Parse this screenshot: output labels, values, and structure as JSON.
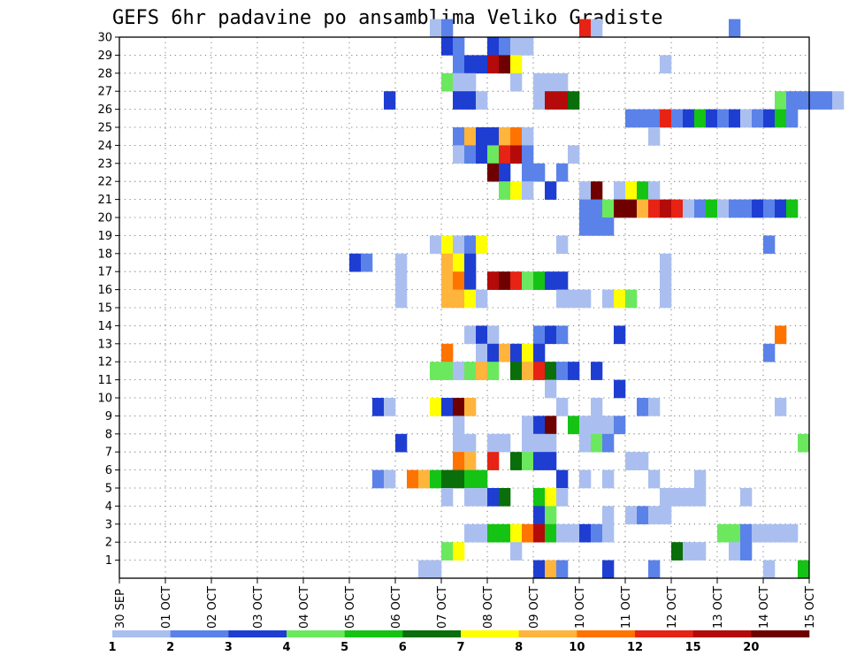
{
  "chart_data": {
    "type": "heatmap",
    "title": "GEFS 6hr padavine po ansamblima Veliko Gradiste",
    "x_ticks": [
      "30 SEP",
      "01 OCT",
      "02 OCT",
      "03 OCT",
      "04 OCT",
      "05 OCT",
      "06 OCT",
      "07 OCT",
      "08 OCT",
      "09 OCT",
      "10 OCT",
      "11 OCT",
      "12 OCT",
      "13 OCT",
      "14 OCT",
      "15 OCT"
    ],
    "x_unit": "6-hour step (4 per day) from 30 SEP",
    "y_ticks": [
      "1",
      "2",
      "3",
      "4",
      "5",
      "6",
      "7",
      "8",
      "9",
      "10",
      "11",
      "12",
      "13",
      "14",
      "15",
      "16",
      "17",
      "18",
      "19",
      "20",
      "21",
      "22",
      "23",
      "24",
      "25",
      "26",
      "27",
      "28",
      "29",
      "30"
    ],
    "ylim": [
      0,
      30
    ],
    "grid": true,
    "colorbar": {
      "labels": [
        "1",
        "2",
        "3",
        "4",
        "5",
        "6",
        "7",
        "8",
        "10",
        "12",
        "15",
        "20"
      ],
      "colors": [
        "#aabfef",
        "#5a82e8",
        "#1e3ed2",
        "#6be85e",
        "#14c314",
        "#0a6e0a",
        "#ffff00",
        "#ffb43c",
        "#ff7300",
        "#e62314",
        "#b40a0a",
        "#6e0000"
      ]
    },
    "cells": [
      [
        27,
        30,
        0
      ],
      [
        28,
        30,
        1
      ],
      [
        40,
        30,
        9
      ],
      [
        41,
        30,
        0
      ],
      [
        53,
        30,
        1
      ],
      [
        28,
        29,
        2
      ],
      [
        29,
        29,
        1
      ],
      [
        32,
        29,
        2
      ],
      [
        33,
        29,
        1
      ],
      [
        34,
        29,
        0
      ],
      [
        35,
        29,
        0
      ],
      [
        29,
        28,
        1
      ],
      [
        30,
        28,
        2
      ],
      [
        31,
        28,
        2
      ],
      [
        32,
        28,
        10
      ],
      [
        33,
        28,
        11
      ],
      [
        34,
        28,
        6
      ],
      [
        47,
        28,
        0
      ],
      [
        28,
        27,
        3
      ],
      [
        29,
        27,
        0
      ],
      [
        30,
        27,
        0
      ],
      [
        34,
        27,
        0
      ],
      [
        36,
        27,
        0
      ],
      [
        37,
        27,
        0
      ],
      [
        38,
        27,
        0
      ],
      [
        23,
        26,
        2
      ],
      [
        29,
        26,
        2
      ],
      [
        30,
        26,
        2
      ],
      [
        31,
        26,
        0
      ],
      [
        36,
        26,
        0
      ],
      [
        37,
        26,
        10
      ],
      [
        38,
        26,
        10
      ],
      [
        39,
        26,
        5
      ],
      [
        57,
        26,
        3
      ],
      [
        58,
        26,
        1
      ],
      [
        59,
        26,
        1
      ],
      [
        60,
        26,
        1
      ],
      [
        61,
        26,
        1
      ],
      [
        62,
        26,
        0
      ],
      [
        44,
        25,
        1
      ],
      [
        45,
        25,
        1
      ],
      [
        46,
        25,
        1
      ],
      [
        47,
        25,
        9
      ],
      [
        48,
        25,
        1
      ],
      [
        49,
        25,
        2
      ],
      [
        50,
        25,
        4
      ],
      [
        51,
        25,
        2
      ],
      [
        52,
        25,
        1
      ],
      [
        53,
        25,
        2
      ],
      [
        54,
        25,
        0
      ],
      [
        55,
        25,
        1
      ],
      [
        56,
        25,
        2
      ],
      [
        57,
        25,
        4
      ],
      [
        58,
        25,
        1
      ],
      [
        29,
        24,
        1
      ],
      [
        30,
        24,
        7
      ],
      [
        31,
        24,
        2
      ],
      [
        32,
        24,
        2
      ],
      [
        33,
        24,
        7
      ],
      [
        34,
        24,
        8
      ],
      [
        35,
        24,
        0
      ],
      [
        46,
        24,
        0
      ],
      [
        29,
        23,
        0
      ],
      [
        30,
        23,
        1
      ],
      [
        31,
        23,
        2
      ],
      [
        32,
        23,
        3
      ],
      [
        33,
        23,
        9
      ],
      [
        34,
        23,
        10
      ],
      [
        35,
        23,
        1
      ],
      [
        39,
        23,
        0
      ],
      [
        32,
        22,
        11
      ],
      [
        33,
        22,
        2
      ],
      [
        35,
        22,
        1
      ],
      [
        36,
        22,
        1
      ],
      [
        38,
        22,
        1
      ],
      [
        33,
        21,
        3
      ],
      [
        34,
        21,
        6
      ],
      [
        35,
        21,
        0
      ],
      [
        37,
        21,
        2
      ],
      [
        40,
        21,
        0
      ],
      [
        41,
        21,
        11
      ],
      [
        43,
        21,
        0
      ],
      [
        44,
        21,
        6
      ],
      [
        45,
        21,
        4
      ],
      [
        46,
        21,
        0
      ],
      [
        40,
        20,
        1
      ],
      [
        41,
        20,
        1
      ],
      [
        42,
        20,
        3
      ],
      [
        43,
        20,
        11
      ],
      [
        44,
        20,
        11
      ],
      [
        45,
        20,
        7
      ],
      [
        46,
        20,
        9
      ],
      [
        47,
        20,
        10
      ],
      [
        48,
        20,
        9
      ],
      [
        49,
        20,
        0
      ],
      [
        50,
        20,
        1
      ],
      [
        51,
        20,
        4
      ],
      [
        52,
        20,
        0
      ],
      [
        53,
        20,
        1
      ],
      [
        54,
        20,
        1
      ],
      [
        55,
        20,
        2
      ],
      [
        56,
        20,
        1
      ],
      [
        57,
        20,
        2
      ],
      [
        58,
        20,
        4
      ],
      [
        40,
        19,
        1
      ],
      [
        41,
        19,
        1
      ],
      [
        42,
        19,
        1
      ],
      [
        27,
        18,
        0
      ],
      [
        28,
        18,
        6
      ],
      [
        29,
        18,
        0
      ],
      [
        30,
        18,
        1
      ],
      [
        31,
        18,
        6
      ],
      [
        38,
        18,
        0
      ],
      [
        56,
        18,
        1
      ],
      [
        20,
        17,
        2
      ],
      [
        21,
        17,
        1
      ],
      [
        24,
        17,
        0
      ],
      [
        28,
        17,
        7
      ],
      [
        29,
        17,
        6
      ],
      [
        30,
        17,
        2
      ],
      [
        47,
        17,
        0
      ],
      [
        24,
        16,
        0
      ],
      [
        28,
        16,
        7
      ],
      [
        29,
        16,
        8
      ],
      [
        30,
        16,
        2
      ],
      [
        32,
        16,
        10
      ],
      [
        33,
        16,
        11
      ],
      [
        34,
        16,
        9
      ],
      [
        35,
        16,
        3
      ],
      [
        36,
        16,
        4
      ],
      [
        37,
        16,
        2
      ],
      [
        38,
        16,
        2
      ],
      [
        47,
        16,
        0
      ],
      [
        24,
        15,
        0
      ],
      [
        28,
        15,
        7
      ],
      [
        29,
        15,
        7
      ],
      [
        30,
        15,
        6
      ],
      [
        31,
        15,
        0
      ],
      [
        38,
        15,
        0
      ],
      [
        39,
        15,
        0
      ],
      [
        40,
        15,
        0
      ],
      [
        42,
        15,
        0
      ],
      [
        43,
        15,
        6
      ],
      [
        44,
        15,
        3
      ],
      [
        47,
        15,
        0
      ],
      [
        30,
        13,
        0
      ],
      [
        31,
        13,
        2
      ],
      [
        32,
        13,
        0
      ],
      [
        36,
        13,
        1
      ],
      [
        37,
        13,
        2
      ],
      [
        38,
        13,
        1
      ],
      [
        43,
        13,
        2
      ],
      [
        57,
        13,
        8
      ],
      [
        28,
        12,
        8
      ],
      [
        31,
        12,
        0
      ],
      [
        32,
        12,
        2
      ],
      [
        33,
        12,
        7
      ],
      [
        34,
        12,
        2
      ],
      [
        35,
        12,
        6
      ],
      [
        36,
        12,
        2
      ],
      [
        56,
        12,
        1
      ],
      [
        27,
        11,
        3
      ],
      [
        28,
        11,
        3
      ],
      [
        29,
        11,
        0
      ],
      [
        30,
        11,
        3
      ],
      [
        31,
        11,
        7
      ],
      [
        32,
        11,
        3
      ],
      [
        34,
        11,
        5
      ],
      [
        35,
        11,
        7
      ],
      [
        36,
        11,
        9
      ],
      [
        37,
        11,
        5
      ],
      [
        38,
        11,
        1
      ],
      [
        39,
        11,
        2
      ],
      [
        41,
        11,
        2
      ],
      [
        37,
        10,
        0
      ],
      [
        43,
        10,
        2
      ],
      [
        22,
        9,
        2
      ],
      [
        23,
        9,
        0
      ],
      [
        27,
        9,
        6
      ],
      [
        28,
        9,
        2
      ],
      [
        29,
        9,
        11
      ],
      [
        30,
        9,
        7
      ],
      [
        38,
        9,
        0
      ],
      [
        41,
        9,
        0
      ],
      [
        45,
        9,
        1
      ],
      [
        46,
        9,
        0
      ],
      [
        57,
        9,
        0
      ],
      [
        29,
        8,
        0
      ],
      [
        35,
        8,
        0
      ],
      [
        36,
        8,
        2
      ],
      [
        37,
        8,
        11
      ],
      [
        39,
        8,
        4
      ],
      [
        40,
        8,
        0
      ],
      [
        41,
        8,
        0
      ],
      [
        42,
        8,
        0
      ],
      [
        43,
        8,
        1
      ],
      [
        24,
        7,
        2
      ],
      [
        29,
        7,
        0
      ],
      [
        30,
        7,
        0
      ],
      [
        32,
        7,
        0
      ],
      [
        33,
        7,
        0
      ],
      [
        35,
        7,
        0
      ],
      [
        36,
        7,
        0
      ],
      [
        37,
        7,
        0
      ],
      [
        40,
        7,
        0
      ],
      [
        41,
        7,
        3
      ],
      [
        42,
        7,
        1
      ],
      [
        59,
        7,
        3
      ],
      [
        29,
        6,
        8
      ],
      [
        30,
        6,
        7
      ],
      [
        32,
        6,
        9
      ],
      [
        34,
        6,
        5
      ],
      [
        35,
        6,
        3
      ],
      [
        36,
        6,
        2
      ],
      [
        37,
        6,
        2
      ],
      [
        44,
        6,
        0
      ],
      [
        45,
        6,
        0
      ],
      [
        22,
        5,
        1
      ],
      [
        23,
        5,
        0
      ],
      [
        25,
        5,
        8
      ],
      [
        26,
        5,
        7
      ],
      [
        27,
        5,
        4
      ],
      [
        28,
        5,
        5
      ],
      [
        29,
        5,
        5
      ],
      [
        30,
        5,
        4
      ],
      [
        31,
        5,
        4
      ],
      [
        38,
        5,
        2
      ],
      [
        40,
        5,
        0
      ],
      [
        42,
        5,
        0
      ],
      [
        46,
        5,
        0
      ],
      [
        50,
        5,
        0
      ],
      [
        28,
        4,
        0
      ],
      [
        30,
        4,
        0
      ],
      [
        31,
        4,
        0
      ],
      [
        32,
        4,
        2
      ],
      [
        33,
        4,
        5
      ],
      [
        36,
        4,
        4
      ],
      [
        37,
        4,
        6
      ],
      [
        38,
        4,
        0
      ],
      [
        47,
        4,
        0
      ],
      [
        48,
        4,
        0
      ],
      [
        49,
        4,
        0
      ],
      [
        50,
        4,
        0
      ],
      [
        54,
        4,
        0
      ],
      [
        36,
        3,
        2
      ],
      [
        37,
        3,
        3
      ],
      [
        42,
        3,
        0
      ],
      [
        44,
        3,
        0
      ],
      [
        45,
        3,
        1
      ],
      [
        46,
        3,
        0
      ],
      [
        47,
        3,
        0
      ],
      [
        30,
        2,
        0
      ],
      [
        31,
        2,
        0
      ],
      [
        32,
        2,
        4
      ],
      [
        33,
        2,
        4
      ],
      [
        34,
        2,
        6
      ],
      [
        35,
        2,
        8
      ],
      [
        36,
        2,
        10
      ],
      [
        37,
        2,
        4
      ],
      [
        38,
        2,
        0
      ],
      [
        39,
        2,
        0
      ],
      [
        40,
        2,
        2
      ],
      [
        41,
        2,
        1
      ],
      [
        42,
        2,
        0
      ],
      [
        52,
        2,
        3
      ],
      [
        53,
        2,
        3
      ],
      [
        54,
        2,
        1
      ],
      [
        55,
        2,
        0
      ],
      [
        56,
        2,
        0
      ],
      [
        57,
        2,
        0
      ],
      [
        58,
        2,
        0
      ],
      [
        28,
        1,
        3
      ],
      [
        29,
        1,
        6
      ],
      [
        34,
        1,
        0
      ],
      [
        48,
        1,
        5
      ],
      [
        49,
        1,
        0
      ],
      [
        50,
        1,
        0
      ],
      [
        53,
        1,
        0
      ],
      [
        54,
        1,
        1
      ],
      [
        26,
        0,
        0
      ],
      [
        27,
        0,
        0
      ],
      [
        36,
        0,
        2
      ],
      [
        37,
        0,
        7
      ],
      [
        38,
        0,
        1
      ],
      [
        42,
        0,
        2
      ],
      [
        46,
        0,
        1
      ],
      [
        56,
        0,
        0
      ],
      [
        59,
        0,
        4
      ]
    ]
  }
}
